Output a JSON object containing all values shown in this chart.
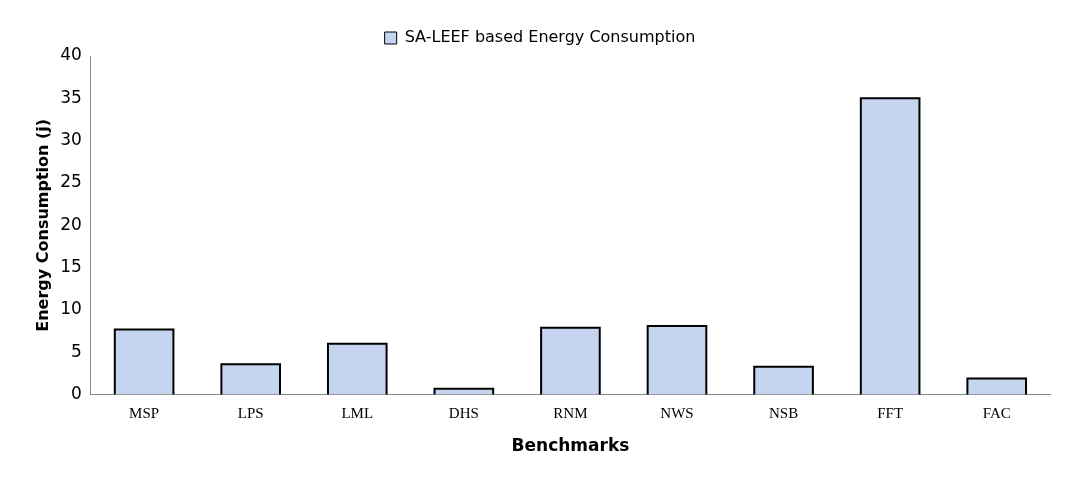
{
  "chart_data": {
    "type": "bar",
    "xlabel": "Benchmarks",
    "ylabel": "Energy Consumption (j)",
    "categories": [
      "MSP",
      "LPS",
      "LML",
      "DHS",
      "RNM",
      "NWS",
      "NSB",
      "FFT",
      "FAC"
    ],
    "series": [
      {
        "name": "SA-LEEF based Energy Consumption",
        "color": "#c5d5ef",
        "values": [
          7.7,
          3.6,
          6.0,
          0.7,
          7.9,
          8.1,
          3.3,
          35,
          1.9
        ]
      }
    ],
    "ylim": [
      0,
      40
    ],
    "yticks": [
      0,
      5,
      10,
      15,
      20,
      25,
      30,
      35,
      40
    ],
    "grid": false,
    "legend": "top"
  }
}
